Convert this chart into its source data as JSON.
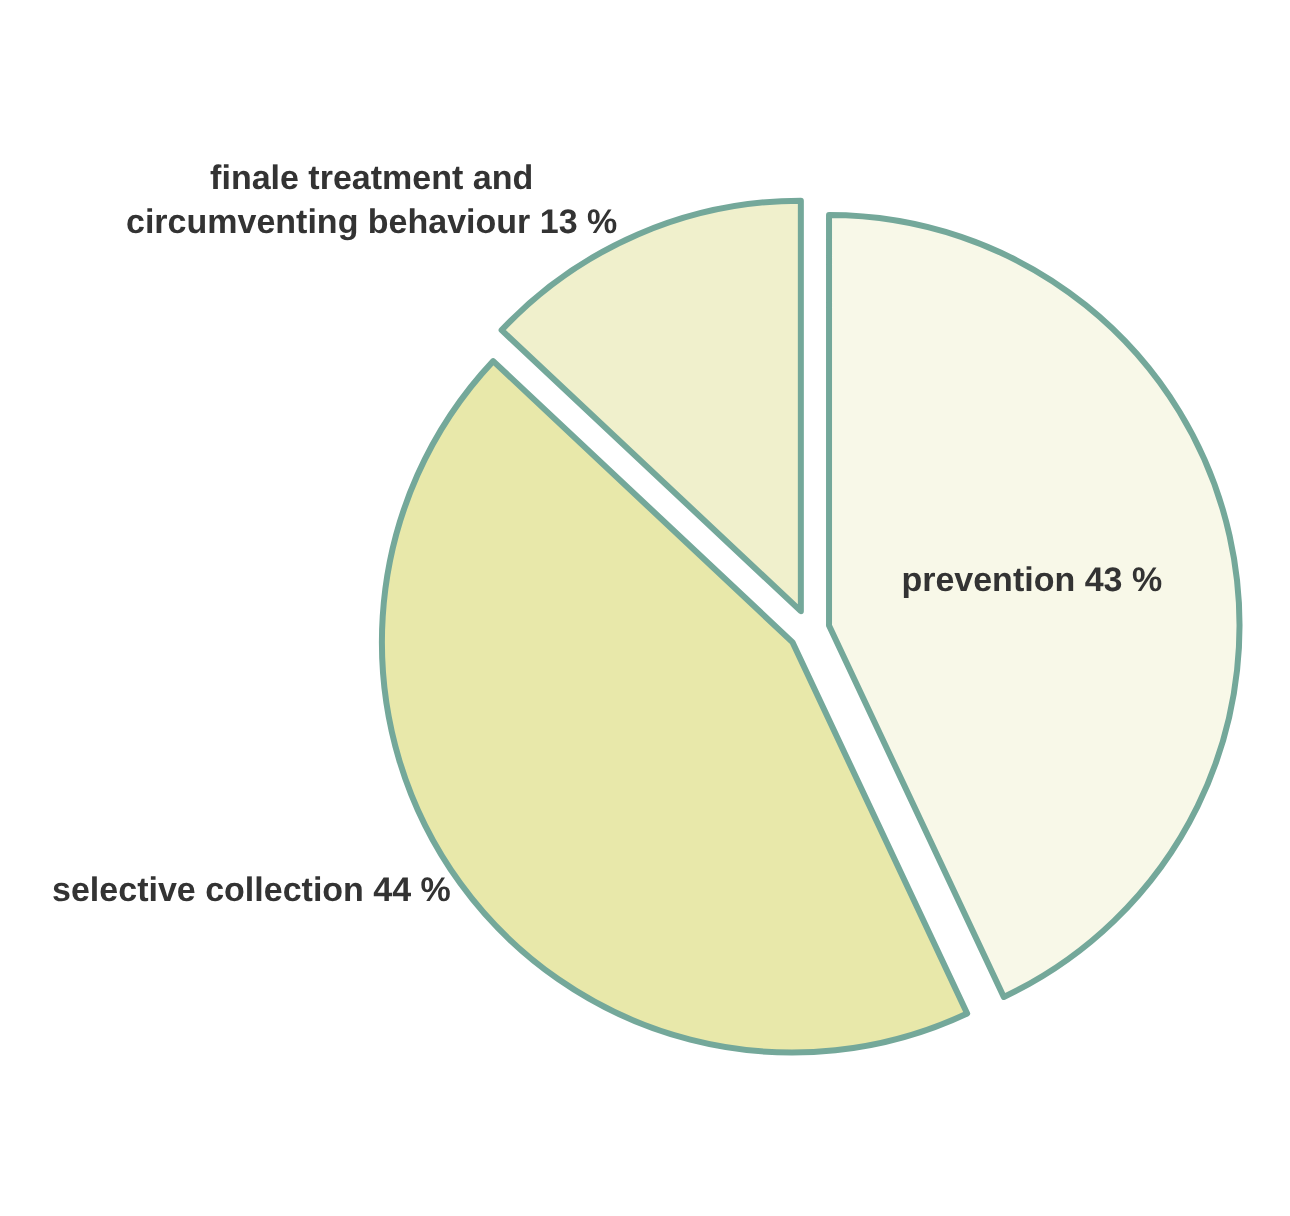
{
  "chart_data": {
    "type": "pie",
    "categories": [
      "prevention",
      "selective collection",
      "finale treatment and circumventing behaviour"
    ],
    "values": [
      43,
      44,
      13
    ],
    "value_labels": [
      "43 %",
      "44 %",
      "13 %"
    ],
    "colors": [
      "#f8f8e8",
      "#e8e8aa",
      "#f0f0cc"
    ],
    "legend": false
  }
}
